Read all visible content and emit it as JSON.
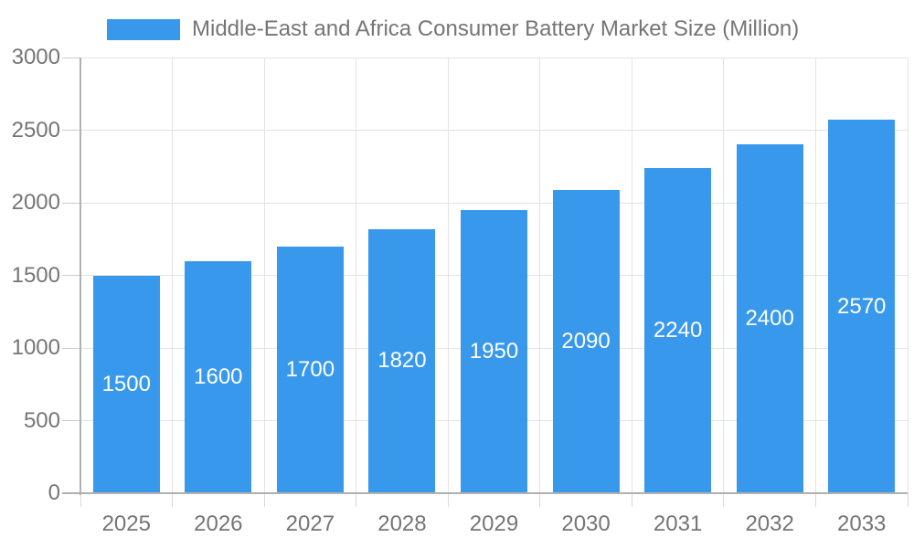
{
  "chart_data": {
    "type": "bar",
    "title": "Middle-East and Africa Consumer Battery Market Size (Million)",
    "categories": [
      "2025",
      "2026",
      "2027",
      "2028",
      "2029",
      "2030",
      "2031",
      "2032",
      "2033"
    ],
    "values": [
      1500,
      1600,
      1700,
      1820,
      1950,
      2090,
      2240,
      2400,
      2570
    ],
    "xlabel": "",
    "ylabel": "",
    "ylim": [
      0,
      3000
    ],
    "yticks": [
      0,
      500,
      1000,
      1500,
      2000,
      2500,
      3000
    ],
    "grid": true,
    "legend_position": "top",
    "bar_label_position": "inside-center"
  },
  "legend": {
    "label": "Middle-East and Africa Consumer Battery Market Size (Million)"
  },
  "colors": {
    "bar": "#3899ec",
    "bar_label": "#ffffff",
    "axis_line": "#b0b0b0",
    "gridline": "#e4e4e4",
    "tick": "#cccccc",
    "axis_text": "#757575",
    "legend_text": "#757575",
    "background": "#ffffff"
  }
}
